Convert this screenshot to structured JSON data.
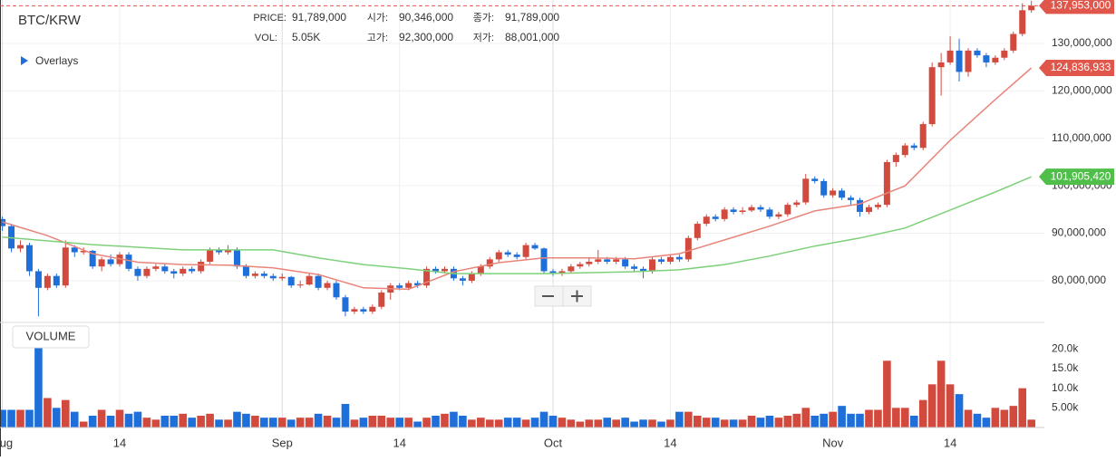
{
  "header": {
    "symbol": "BTC/KRW",
    "overlays": "Overlays",
    "volume_label": "VOLUME"
  },
  "info": [
    {
      "label": "PRICE:",
      "value": "91,789,000"
    },
    {
      "label": "시가:",
      "value": "90,346,000"
    },
    {
      "label": "종가:",
      "value": "91,789,000"
    },
    {
      "label": "VOL:",
      "value": "5.05K"
    },
    {
      "label": "고가:",
      "value": "92,300,000"
    },
    {
      "label": "저가:",
      "value": "88,001,000"
    }
  ],
  "chart_data": {
    "type": "candlestick",
    "categories": [
      "Aug",
      null,
      null,
      null,
      null,
      null,
      null,
      null,
      null,
      null,
      null,
      null,
      null,
      "14",
      null,
      null,
      null,
      null,
      null,
      null,
      null,
      null,
      null,
      null,
      null,
      null,
      null,
      null,
      null,
      null,
      null,
      "Sep",
      null,
      null,
      null,
      null,
      null,
      null,
      null,
      null,
      null,
      null,
      null,
      null,
      "14",
      null,
      null,
      null,
      null,
      null,
      null,
      null,
      null,
      null,
      null,
      null,
      null,
      null,
      null,
      null,
      null,
      "Oct",
      null,
      null,
      null,
      null,
      null,
      null,
      null,
      null,
      null,
      null,
      null,
      null,
      "14",
      null,
      null,
      null,
      null,
      null,
      null,
      null,
      null,
      null,
      null,
      null,
      null,
      null,
      null,
      null,
      null,
      null,
      "Nov",
      null,
      null,
      null,
      null,
      null,
      null,
      null,
      null,
      null,
      null,
      null,
      null,
      "14",
      null,
      null,
      null,
      null,
      null,
      null,
      null,
      null,
      null
    ],
    "ohlc": [
      [
        93000000,
        93500000,
        90500000,
        91500000
      ],
      [
        91500000,
        92000000,
        86000000,
        86800000
      ],
      [
        86800000,
        88500000,
        86000000,
        87500000
      ],
      [
        87500000,
        88000000,
        81000000,
        82000000
      ],
      [
        82000000,
        82500000,
        72500000,
        78500000
      ],
      [
        78500000,
        81500000,
        78000000,
        81000000
      ],
      [
        81000000,
        81500000,
        78500000,
        79000000
      ],
      [
        79000000,
        88500000,
        78500000,
        87000000
      ],
      [
        87000000,
        87500000,
        85000000,
        86000000
      ],
      [
        86000000,
        87000000,
        85500000,
        86300000
      ],
      [
        86300000,
        86500000,
        82500000,
        83000000
      ],
      [
        83000000,
        85000000,
        82000000,
        84500000
      ],
      [
        84500000,
        85500000,
        83000000,
        83500000
      ],
      [
        83500000,
        86000000,
        83000000,
        85500000
      ],
      [
        85500000,
        86000000,
        82000000,
        82500000
      ],
      [
        82500000,
        83000000,
        80000000,
        81000000
      ],
      [
        81000000,
        83000000,
        80500000,
        82500000
      ],
      [
        82500000,
        83500000,
        82000000,
        83000000
      ],
      [
        83000000,
        83500000,
        81500000,
        82000000
      ],
      [
        82000000,
        82500000,
        80500000,
        81500000
      ],
      [
        81500000,
        83000000,
        81000000,
        82500000
      ],
      [
        82500000,
        83000000,
        81500000,
        82000000
      ],
      [
        82000000,
        84500000,
        81500000,
        84000000
      ],
      [
        84000000,
        87000000,
        83500000,
        86500000
      ],
      [
        86500000,
        87000000,
        85500000,
        86000000
      ],
      [
        86000000,
        87500000,
        85500000,
        86500000
      ],
      [
        86500000,
        87000000,
        82500000,
        83000000
      ],
      [
        83000000,
        83500000,
        80500000,
        81000000
      ],
      [
        81000000,
        82000000,
        80500000,
        81500000
      ],
      [
        81500000,
        82000000,
        80500000,
        81000000
      ],
      [
        81000000,
        81500000,
        80000000,
        80500000
      ],
      [
        80500000,
        81500000,
        80000000,
        80800000
      ],
      [
        80800000,
        81000000,
        78500000,
        79000000
      ],
      [
        79000000,
        80000000,
        78500000,
        79200000
      ],
      [
        79200000,
        81500000,
        79000000,
        81000000
      ],
      [
        81000000,
        81500000,
        78000000,
        78500000
      ],
      [
        78500000,
        80000000,
        78000000,
        79500000
      ],
      [
        79500000,
        80000000,
        76000000,
        76500000
      ],
      [
        76500000,
        77000000,
        72500000,
        73500000
      ],
      [
        73500000,
        74500000,
        73000000,
        74000000
      ],
      [
        74000000,
        74500000,
        73000000,
        73500000
      ],
      [
        73500000,
        75000000,
        73000000,
        74500000
      ],
      [
        74500000,
        78000000,
        74000000,
        77500000
      ],
      [
        77500000,
        79500000,
        76000000,
        79000000
      ],
      [
        79000000,
        79500000,
        78000000,
        78500000
      ],
      [
        78500000,
        80000000,
        78000000,
        79500000
      ],
      [
        79500000,
        80000000,
        78500000,
        79000000
      ],
      [
        79000000,
        83000000,
        78500000,
        82500000
      ],
      [
        82500000,
        83000000,
        81500000,
        82000000
      ],
      [
        82000000,
        83000000,
        81500000,
        82500000
      ],
      [
        82500000,
        83000000,
        80000000,
        80500000
      ],
      [
        80500000,
        81000000,
        79000000,
        80000000
      ],
      [
        80000000,
        82000000,
        79500000,
        81500000
      ],
      [
        81500000,
        83500000,
        81000000,
        83000000
      ],
      [
        83000000,
        85000000,
        82500000,
        84500000
      ],
      [
        84500000,
        86500000,
        84000000,
        86000000
      ],
      [
        86000000,
        86500000,
        85000000,
        85500000
      ],
      [
        85500000,
        86000000,
        84500000,
        85000000
      ],
      [
        85000000,
        88000000,
        84500000,
        87500000
      ],
      [
        87500000,
        88000000,
        86500000,
        86800000
      ],
      [
        86800000,
        87000000,
        81500000,
        82000000
      ],
      [
        82000000,
        82500000,
        81000000,
        81500000
      ],
      [
        81500000,
        82500000,
        81000000,
        82000000
      ],
      [
        82000000,
        83500000,
        81500000,
        83000000
      ],
      [
        83000000,
        84000000,
        82500000,
        83500000
      ],
      [
        83500000,
        85000000,
        83000000,
        84000000
      ],
      [
        84000000,
        86500000,
        83500000,
        84500000
      ],
      [
        84500000,
        85000000,
        83500000,
        84000000
      ],
      [
        84000000,
        85000000,
        83500000,
        84500000
      ],
      [
        84500000,
        85000000,
        82500000,
        83000000
      ],
      [
        83000000,
        83500000,
        82000000,
        82500000
      ],
      [
        82500000,
        83000000,
        80500000,
        82000000
      ],
      [
        82000000,
        85000000,
        81500000,
        84500000
      ],
      [
        84500000,
        85000000,
        83500000,
        84000000
      ],
      [
        84000000,
        85500000,
        83500000,
        85000000
      ],
      [
        85000000,
        85500000,
        84000000,
        84500000
      ],
      [
        84500000,
        89500000,
        84000000,
        89000000
      ],
      [
        89000000,
        92500000,
        88500000,
        92000000
      ],
      [
        92000000,
        94000000,
        91500000,
        93500000
      ],
      [
        93500000,
        94000000,
        92500000,
        93000000
      ],
      [
        93000000,
        95500000,
        92500000,
        95000000
      ],
      [
        95000000,
        95500000,
        94000000,
        94500000
      ],
      [
        94500000,
        95500000,
        94000000,
        94800000
      ],
      [
        94800000,
        96000000,
        94500000,
        95500000
      ],
      [
        95500000,
        96000000,
        94500000,
        95000000
      ],
      [
        95000000,
        95500000,
        93000000,
        93500000
      ],
      [
        93500000,
        94500000,
        93000000,
        94000000
      ],
      [
        94000000,
        96500000,
        93500000,
        96000000
      ],
      [
        96000000,
        97000000,
        95500000,
        96500000
      ],
      [
        96500000,
        102500000,
        96000000,
        101500000
      ],
      [
        101500000,
        102000000,
        100500000,
        101000000
      ],
      [
        101000000,
        101500000,
        97500000,
        98000000
      ],
      [
        98000000,
        99500000,
        97500000,
        99000000
      ],
      [
        99000000,
        99500000,
        97000000,
        97500000
      ],
      [
        97500000,
        98000000,
        96000000,
        97000000
      ],
      [
        97000000,
        97500000,
        93500000,
        94500000
      ],
      [
        94500000,
        96000000,
        94000000,
        95500000
      ],
      [
        95500000,
        96500000,
        95000000,
        96000000
      ],
      [
        96000000,
        105500000,
        95500000,
        105000000
      ],
      [
        105000000,
        107000000,
        104000000,
        106500000
      ],
      [
        106500000,
        109000000,
        106000000,
        108500000
      ],
      [
        108500000,
        109000000,
        107500000,
        108000000
      ],
      [
        108000000,
        113500000,
        107500000,
        113000000
      ],
      [
        113000000,
        126000000,
        112500000,
        125000000
      ],
      [
        125000000,
        128000000,
        119000000,
        126000000
      ],
      [
        126000000,
        131500000,
        125500000,
        128500000
      ],
      [
        128500000,
        131000000,
        122000000,
        124000000
      ],
      [
        124000000,
        129000000,
        123000000,
        128500000
      ],
      [
        128500000,
        129000000,
        127000000,
        127500000
      ],
      [
        127500000,
        128000000,
        125000000,
        126000000
      ],
      [
        126000000,
        127500000,
        125500000,
        127000000
      ],
      [
        127000000,
        129000000,
        126500000,
        128500000
      ],
      [
        128500000,
        132500000,
        128000000,
        132000000
      ],
      [
        132000000,
        138500000,
        131500000,
        137000000
      ],
      [
        137000000,
        139000000,
        136500000,
        137953000
      ]
    ],
    "up_color": "#d24a3e",
    "down_color": "#1e6fd9",
    "ylim": [
      71400000,
      139160000
    ],
    "yticks": [
      {
        "value": 80000000,
        "label": "80,000,000"
      },
      {
        "value": 90000000,
        "label": "90,000,000"
      },
      {
        "value": 100000000,
        "label": "100,000,000"
      },
      {
        "value": 110000000,
        "label": "110,000,000"
      },
      {
        "value": 120000000,
        "label": "120,000,000"
      },
      {
        "value": 130000000,
        "label": "130,000,000"
      }
    ],
    "grid": true,
    "last_price": {
      "value": 137953000,
      "label": "137,953,000",
      "color": "#e0564a"
    },
    "overlays": [
      {
        "color": "#e8847a",
        "x": [
          0,
          5,
          10,
          15,
          20,
          25,
          30,
          35,
          40,
          45,
          50,
          55,
          60,
          65,
          70,
          75,
          80,
          85,
          90,
          95,
          100,
          105,
          110,
          114
        ],
        "values": [
          92400000,
          89500000,
          85700000,
          83900000,
          83400000,
          83300000,
          82700000,
          81300000,
          78500000,
          78200000,
          81900000,
          83800000,
          84800000,
          84800000,
          84600000,
          85700000,
          88600000,
          91500000,
          94700000,
          96200000,
          100000000,
          109600000,
          118200000,
          124836933
        ],
        "end_label": "124,836,933",
        "tag_color": "#e0564a"
      },
      {
        "color": "#7fd07a",
        "x": [
          0,
          10,
          20,
          30,
          35,
          40,
          45,
          50,
          60,
          70,
          75,
          80,
          85,
          90,
          95,
          100,
          105,
          110,
          114
        ],
        "values": [
          89200000,
          87600000,
          86500000,
          86500000,
          84800000,
          83400000,
          82500000,
          81500000,
          81500000,
          81900000,
          82300000,
          83400000,
          85200000,
          87300000,
          89000000,
          91100000,
          94900000,
          98700000,
          101905420
        ],
        "end_label": "101,905,420",
        "tag_color": "#4fbf4a"
      }
    ],
    "volume": {
      "values": [
        4500,
        4500,
        4500,
        4500,
        24000,
        7500,
        5000,
        7000,
        4000,
        1500,
        3000,
        4500,
        3000,
        4500,
        3500,
        4000,
        2500,
        2000,
        3000,
        3000,
        3500,
        2500,
        3000,
        3500,
        2000,
        2000,
        4000,
        3500,
        3000,
        2500,
        2500,
        2500,
        2000,
        2500,
        2500,
        3500,
        3000,
        2500,
        6000,
        2000,
        2500,
        3000,
        3000,
        2500,
        2500,
        2500,
        1500,
        2500,
        3000,
        3500,
        4000,
        3000,
        2000,
        2500,
        2000,
        2000,
        2500,
        2500,
        2000,
        2500,
        4000,
        3000,
        2500,
        2000,
        1500,
        2000,
        2000,
        2500,
        2000,
        2500,
        1500,
        2000,
        2000,
        1500,
        2000,
        4000,
        4000,
        3000,
        2500,
        2500,
        2000,
        2000,
        2000,
        3000,
        2500,
        3000,
        2500,
        3000,
        3500,
        5000,
        3000,
        3500,
        4000,
        5500,
        3500,
        3500,
        4500,
        4500,
        17000,
        5000,
        5000,
        3000,
        7000,
        11000,
        17000,
        11000,
        8500,
        4500,
        3500,
        2500,
        5000,
        4500,
        5500,
        10000,
        2000
      ],
      "ylim": [
        0,
        26300
      ],
      "yticks": [
        {
          "value": 5000,
          "label": "5.00k"
        },
        {
          "value": 10000,
          "label": "10.0k"
        },
        {
          "value": 15000,
          "label": "15.0k"
        },
        {
          "value": 20000,
          "label": "20.0k"
        }
      ]
    }
  }
}
